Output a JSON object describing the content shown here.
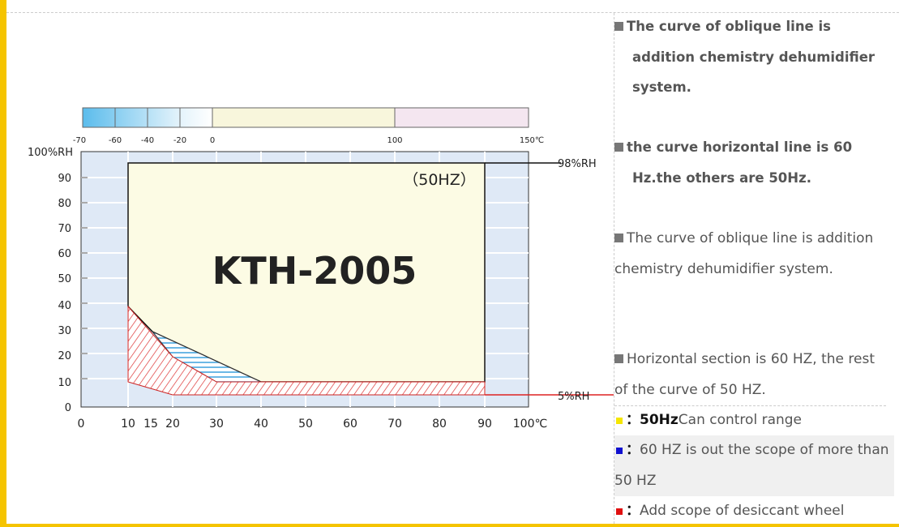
{
  "diagram": {
    "temp_scale_labels": [
      "-70",
      "-60",
      "-40",
      "-20",
      "0",
      "100",
      "150℃"
    ],
    "y_labels": [
      "100%RH",
      "90",
      "80",
      "70",
      "60",
      "50",
      "40",
      "30",
      "20",
      "10",
      "0"
    ],
    "x_labels": [
      "0",
      "10",
      "15",
      "20",
      "30",
      "40",
      "50",
      "60",
      "70",
      "80",
      "90",
      "100℃"
    ],
    "mode_label": "（50HZ）",
    "model": "KTH-2005",
    "upper_limit": "98%RH",
    "lower_limit": "5%RH"
  },
  "notes": [
    "The curve of oblique line is addition chemistry dehumidifier system.",
    "the curve horizontal line is 60 Hz.the others are 50Hz.",
    "The curve of oblique line is addition chemistry dehumidifier system.",
    "Horizontal section is 60 HZ, the rest of the curve of 50 HZ."
  ],
  "legend": [
    {
      "marker": "：",
      "key": "50Hz",
      "text": "Can control range"
    },
    {
      "marker": "：",
      "text": "60 HZ is out the scope of more than 50 HZ"
    },
    {
      "marker": "：",
      "text": "Add scope of desiccant wheel"
    }
  ]
}
